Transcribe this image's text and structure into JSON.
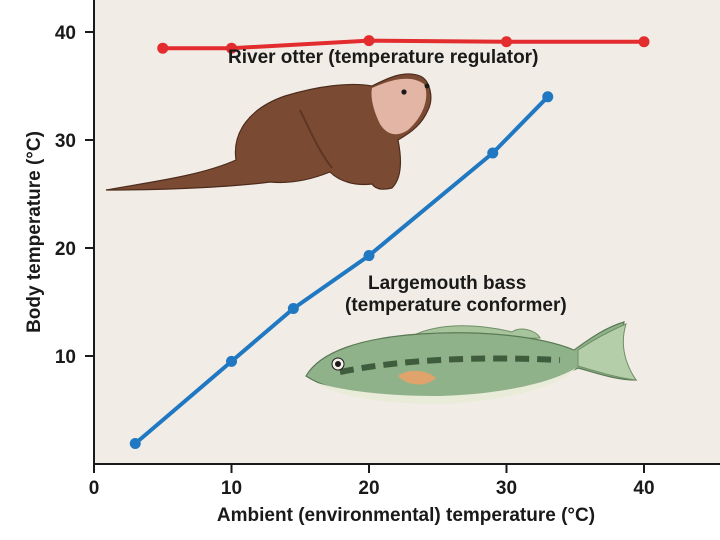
{
  "chart_data": {
    "type": "line",
    "title": "",
    "xlabel": "Ambient (environmental) temperature (°C)",
    "ylabel": "Body temperature (°C)",
    "xlim": [
      0,
      45
    ],
    "ylim": [
      0,
      42
    ],
    "xticks": [
      "0",
      "10",
      "20",
      "30",
      "40"
    ],
    "yticks": [
      "10",
      "20",
      "30",
      "40"
    ],
    "grid": false,
    "series": [
      {
        "name": "River otter (temperature regulator)",
        "label_lines": [
          "River otter (temperature regulator)"
        ],
        "color": "#e32c2e",
        "illustration": "river-otter",
        "x": [
          5,
          10,
          20,
          30,
          40
        ],
        "y": [
          38.5,
          38.5,
          39.2,
          39.1,
          39.1
        ]
      },
      {
        "name": "Largemouth bass (temperature conformer)",
        "label_lines": [
          "Largemouth bass",
          "(temperature conformer)"
        ],
        "color": "#1f78c1",
        "illustration": "largemouth-bass",
        "x": [
          3,
          10,
          14.5,
          20,
          29,
          33
        ],
        "y": [
          1.9,
          9.5,
          14.4,
          19.3,
          28.8,
          34
        ]
      }
    ],
    "colors": {
      "plot_background": "#f1ede6",
      "axis": "#1a1a1a"
    }
  }
}
